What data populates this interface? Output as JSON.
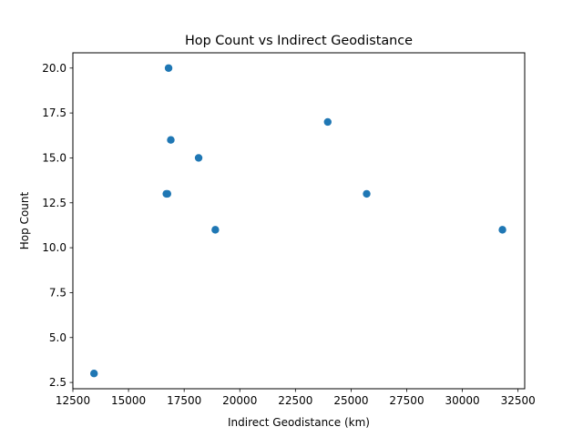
{
  "chart_data": {
    "type": "scatter",
    "title": "Hop Count vs Indirect Geodistance",
    "xlabel": "Indirect Geodistance (km)",
    "ylabel": "Hop Count",
    "xlim": [
      12500,
      32800
    ],
    "ylim": [
      2.15,
      20.85
    ],
    "xticks": [
      12500,
      15000,
      17500,
      20000,
      22500,
      25000,
      27500,
      30000,
      32500
    ],
    "xtick_labels": [
      "12500",
      "15000",
      "17500",
      "20000",
      "22500",
      "25000",
      "27500",
      "30000",
      "32500"
    ],
    "yticks": [
      2.5,
      5.0,
      7.5,
      10.0,
      12.5,
      15.0,
      17.5,
      20.0
    ],
    "ytick_labels": [
      "2.5",
      "5.0",
      "7.5",
      "10.0",
      "12.5",
      "15.0",
      "17.5",
      "20.0"
    ],
    "grid": false,
    "marker_color": "#1f77b4",
    "points": [
      {
        "x": 13450,
        "y": 3
      },
      {
        "x": 16700,
        "y": 13
      },
      {
        "x": 16750,
        "y": 13
      },
      {
        "x": 16800,
        "y": 20
      },
      {
        "x": 16900,
        "y": 16
      },
      {
        "x": 18150,
        "y": 15
      },
      {
        "x": 18900,
        "y": 11
      },
      {
        "x": 23950,
        "y": 17
      },
      {
        "x": 25700,
        "y": 13
      },
      {
        "x": 31800,
        "y": 11
      }
    ]
  }
}
